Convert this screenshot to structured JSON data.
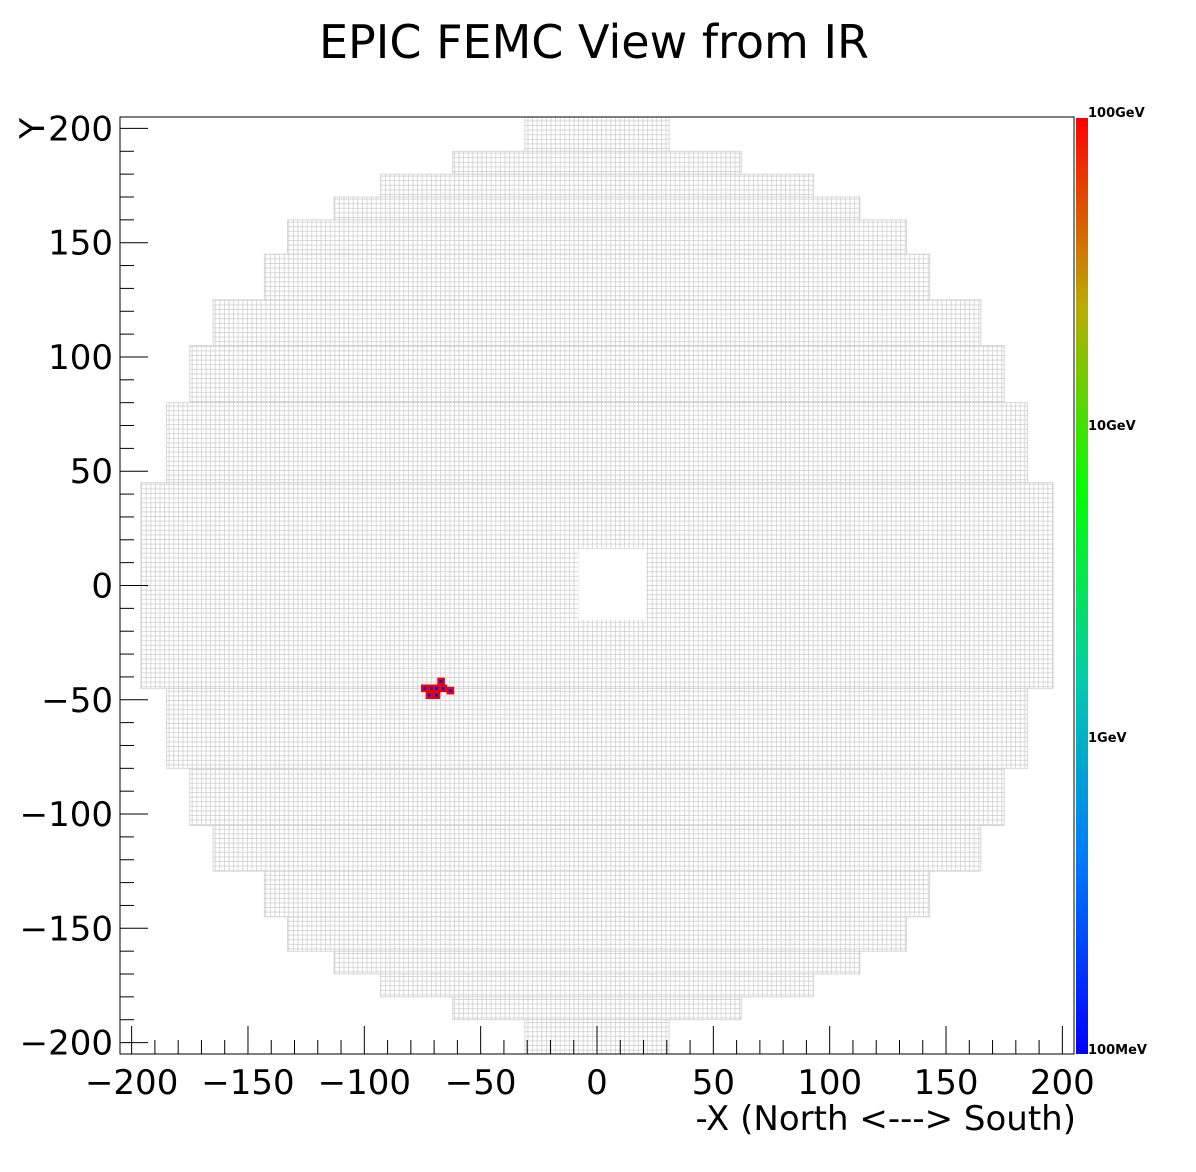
{
  "chart_data": {
    "type": "heatmap",
    "title": "EPIC FEMC View from IR",
    "xlabel": "-X (North <---> South)",
    "ylabel": "Y",
    "xlim": [
      -205,
      205
    ],
    "ylim": [
      -205,
      205
    ],
    "x_ticks": [
      "−200",
      "−150",
      "−100",
      "−50",
      "0",
      "50",
      "100",
      "150",
      "200"
    ],
    "y_ticks": [
      "−200",
      "−150",
      "−100",
      "−50",
      "0",
      "50",
      "100",
      "150",
      "200"
    ],
    "colorbar": {
      "scale": "log",
      "labels": [
        "100MeV",
        "1GeV",
        "10GeV",
        "100GeV"
      ],
      "colors": [
        "#0000ff",
        "#0077ff",
        "#00ccaa",
        "#00ff00",
        "#bbaa00",
        "#ff0000"
      ]
    },
    "detector": {
      "row_extents": [
        {
          "y": [
            190,
            205
          ],
          "x": [
            -31,
            31
          ]
        },
        {
          "y": [
            180,
            190
          ],
          "x": [
            -62,
            62
          ]
        },
        {
          "y": [
            170,
            180
          ],
          "x": [
            -93,
            93
          ]
        },
        {
          "y": [
            160,
            170
          ],
          "x": [
            -113,
            113
          ]
        },
        {
          "y": [
            145,
            160
          ],
          "x": [
            -133,
            133
          ]
        },
        {
          "y": [
            125,
            145
          ],
          "x": [
            -143,
            143
          ]
        },
        {
          "y": [
            105,
            125
          ],
          "x": [
            -165,
            165
          ]
        },
        {
          "y": [
            80,
            105
          ],
          "x": [
            -175,
            175
          ]
        },
        {
          "y": [
            45,
            80
          ],
          "x": [
            -185,
            185
          ]
        },
        {
          "y": [
            -45,
            45
          ],
          "x": [
            -196,
            196
          ]
        },
        {
          "y": [
            -80,
            -45
          ],
          "x": [
            -185,
            185
          ]
        },
        {
          "y": [
            -105,
            -80
          ],
          "x": [
            -175,
            175
          ]
        },
        {
          "y": [
            -125,
            -105
          ],
          "x": [
            -165,
            165
          ]
        },
        {
          "y": [
            -145,
            -125
          ],
          "x": [
            -143,
            143
          ]
        },
        {
          "y": [
            -160,
            -145
          ],
          "x": [
            -133,
            133
          ]
        },
        {
          "y": [
            -170,
            -160
          ],
          "x": [
            -113,
            113
          ]
        },
        {
          "y": [
            -180,
            -170
          ],
          "x": [
            -93,
            93
          ]
        },
        {
          "y": [
            -190,
            -180
          ],
          "x": [
            -62,
            62
          ]
        },
        {
          "y": [
            -205,
            -190
          ],
          "x": [
            -31,
            31
          ]
        }
      ],
      "beam_hole": {
        "x": [
          -8,
          21
        ],
        "y": [
          -15,
          16
        ]
      }
    },
    "hits": [
      {
        "x": -74,
        "y": -45,
        "level": "high"
      },
      {
        "x": -71,
        "y": -45,
        "level": "high"
      },
      {
        "x": -72,
        "y": -48,
        "level": "high"
      },
      {
        "x": -69,
        "y": -48,
        "level": "high"
      },
      {
        "x": -69,
        "y": -45,
        "level": "high"
      },
      {
        "x": -67,
        "y": -42,
        "level": "high"
      },
      {
        "x": -66,
        "y": -45,
        "level": "high"
      },
      {
        "x": -63,
        "y": -46,
        "level": "high"
      }
    ]
  }
}
